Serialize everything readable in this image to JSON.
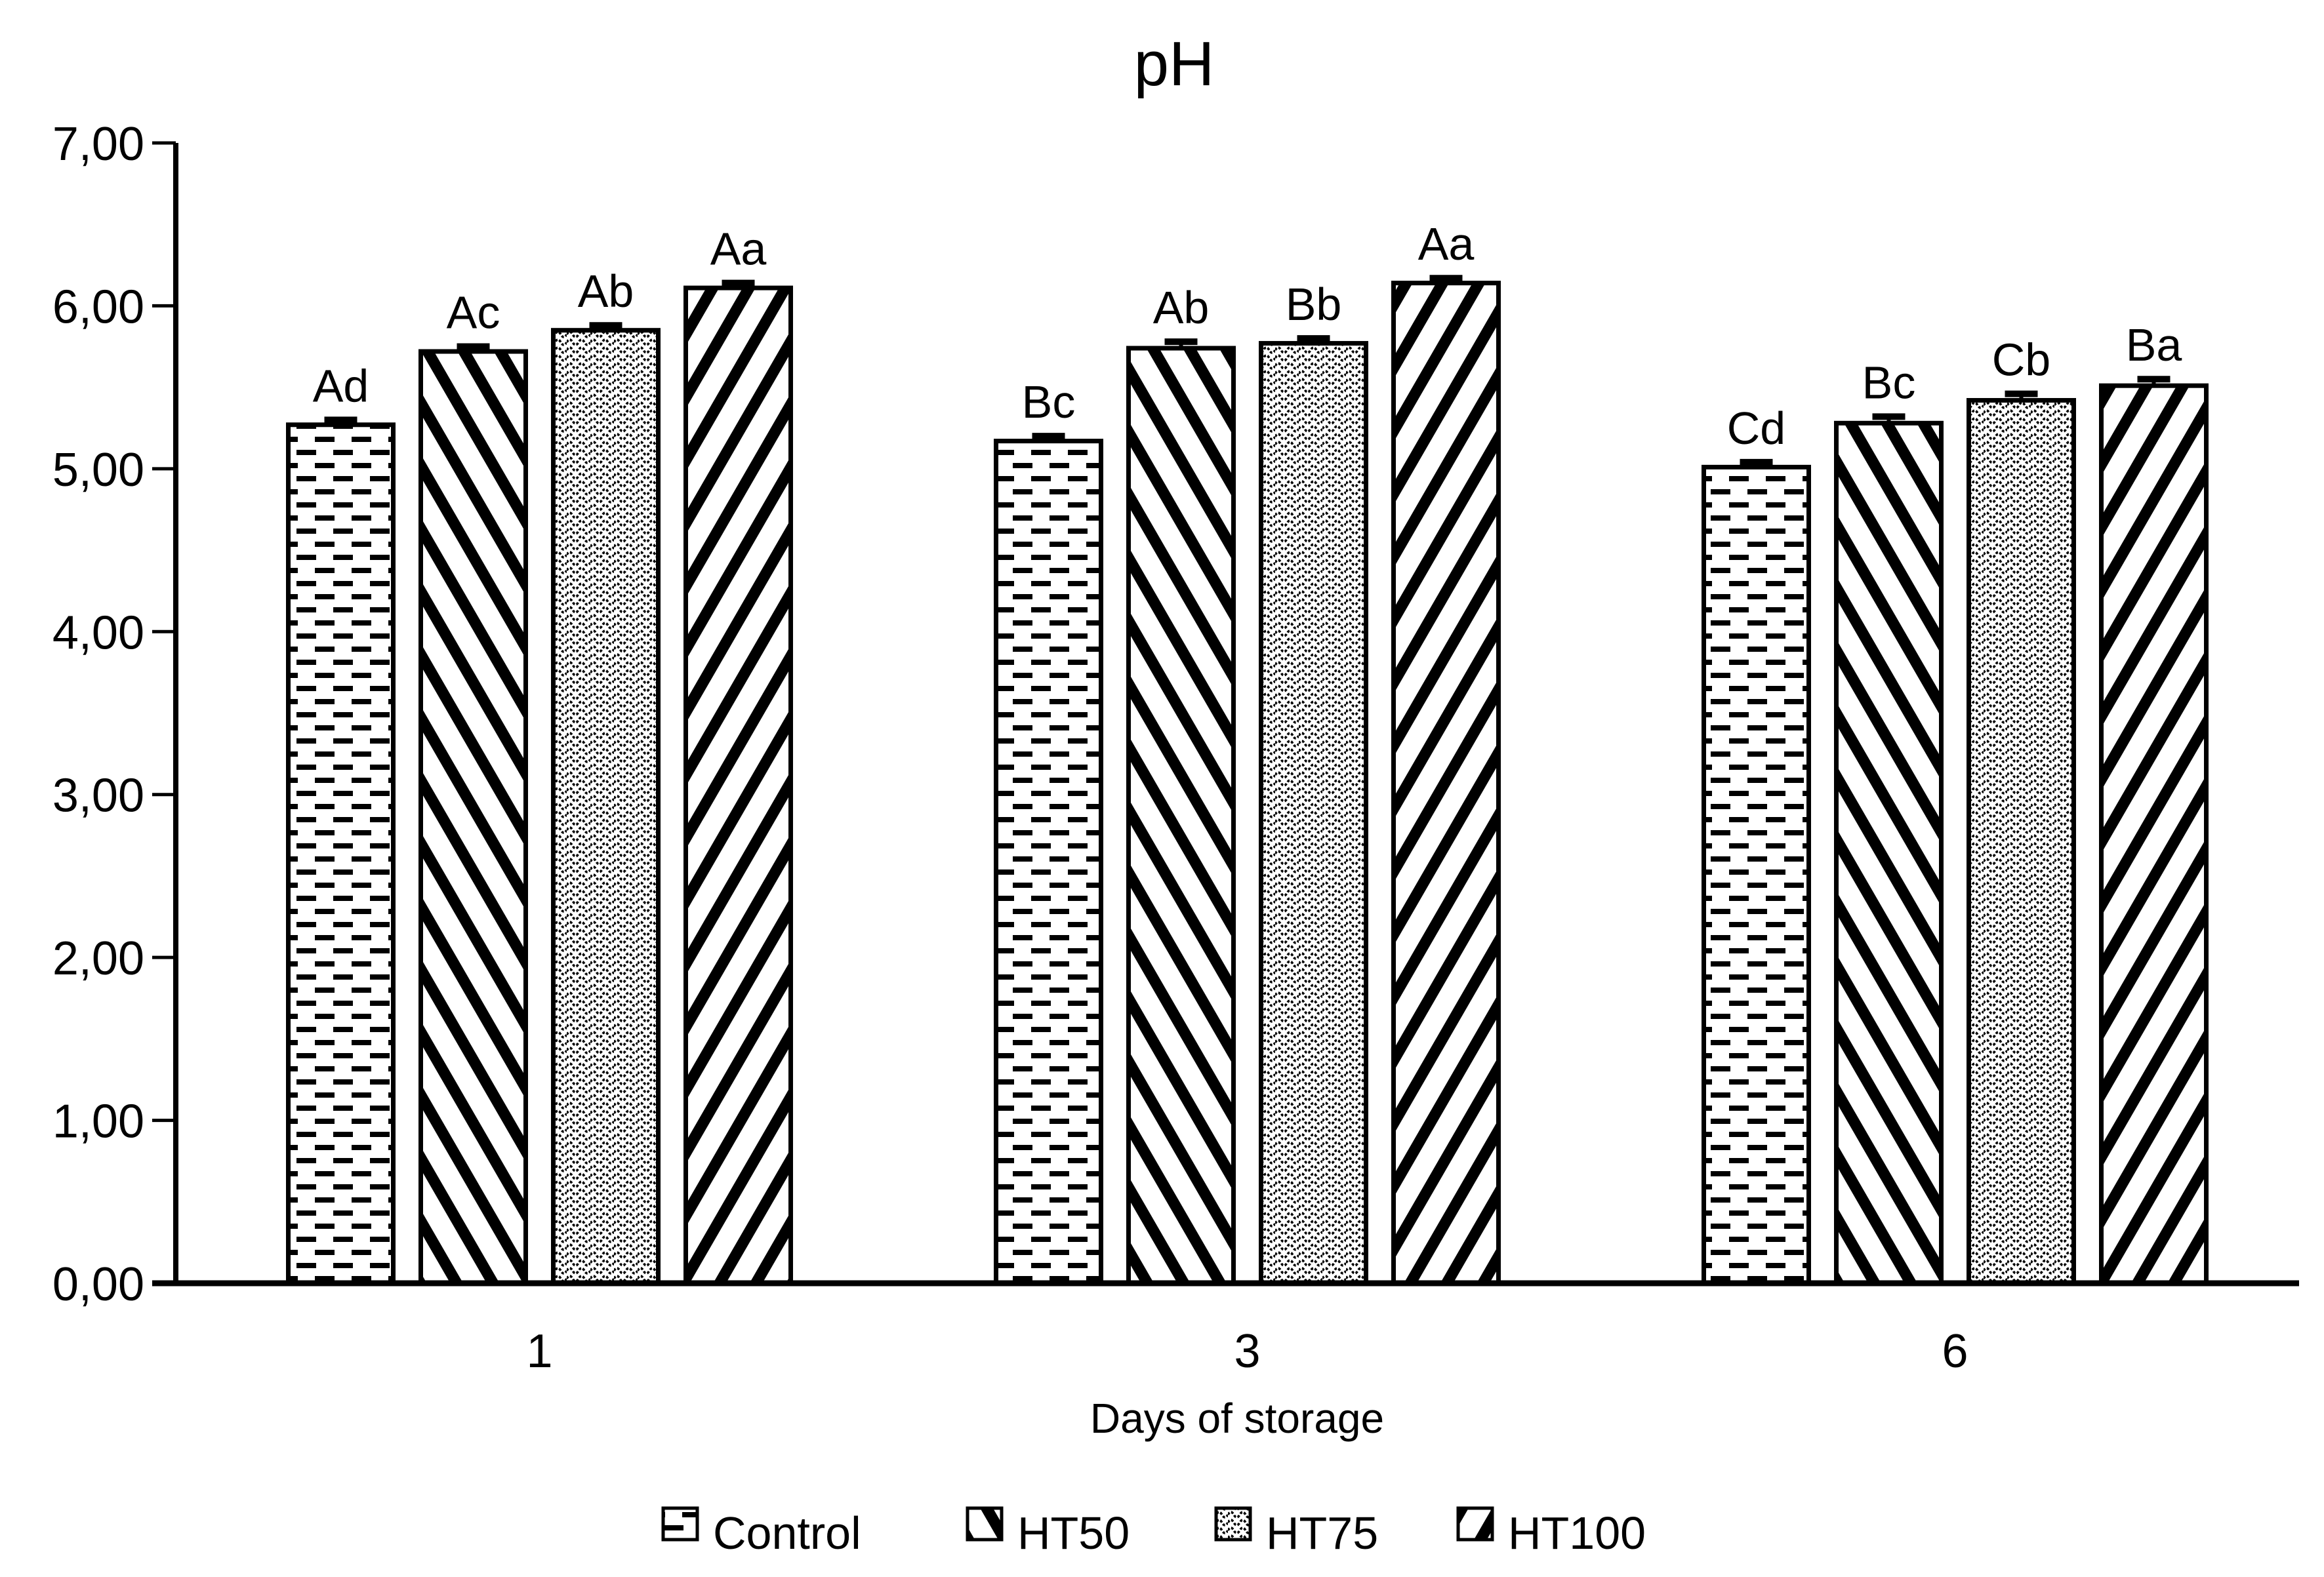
{
  "title": "pH",
  "y_axis": {
    "tick_labels": [
      "0,00",
      "1,00",
      "2,00",
      "3,00",
      "4,00",
      "5,00",
      "6,00",
      "7,00"
    ],
    "min": 0,
    "max": 7,
    "step": 1
  },
  "x_axis": {
    "title": "Days of storage",
    "categories": [
      "1",
      "3",
      "6"
    ]
  },
  "legend": {
    "items": [
      "Control",
      "HT50",
      "HT75",
      "HT100"
    ]
  },
  "colors": {
    "foreground": "#000000",
    "background": "#ffffff"
  },
  "chart_data": {
    "type": "bar",
    "title": "pH",
    "xlabel": "Days of storage",
    "ylabel": "",
    "ylim": [
      0,
      7
    ],
    "ytick_step": 1,
    "decimal_separator": ",",
    "grid": false,
    "legend_position": "bottom",
    "categories": [
      "1",
      "3",
      "6"
    ],
    "series": [
      {
        "name": "Control",
        "pattern": "horizontal-dashes",
        "values": [
          5.27,
          5.17,
          5.01
        ],
        "errors": [
          0.03,
          0.03,
          0.03
        ],
        "point_labels": [
          "Ad",
          "Bc",
          "Cd"
        ]
      },
      {
        "name": "HT50",
        "pattern": "diagonal-backslash",
        "values": [
          5.72,
          5.74,
          5.28
        ],
        "errors": [
          0.03,
          0.04,
          0.04
        ],
        "point_labels": [
          "Ac",
          "Ab",
          "Bc"
        ]
      },
      {
        "name": "HT75",
        "pattern": "wave-dots",
        "values": [
          5.85,
          5.77,
          5.42
        ],
        "errors": [
          0.03,
          0.03,
          0.04
        ],
        "point_labels": [
          "Ab",
          "Bb",
          "Cb"
        ]
      },
      {
        "name": "HT100",
        "pattern": "diagonal-slash",
        "values": [
          6.11,
          6.14,
          5.51
        ],
        "errors": [
          0.03,
          0.03,
          0.04
        ],
        "point_labels": [
          "Aa",
          "Aa",
          "Ba"
        ]
      }
    ]
  }
}
